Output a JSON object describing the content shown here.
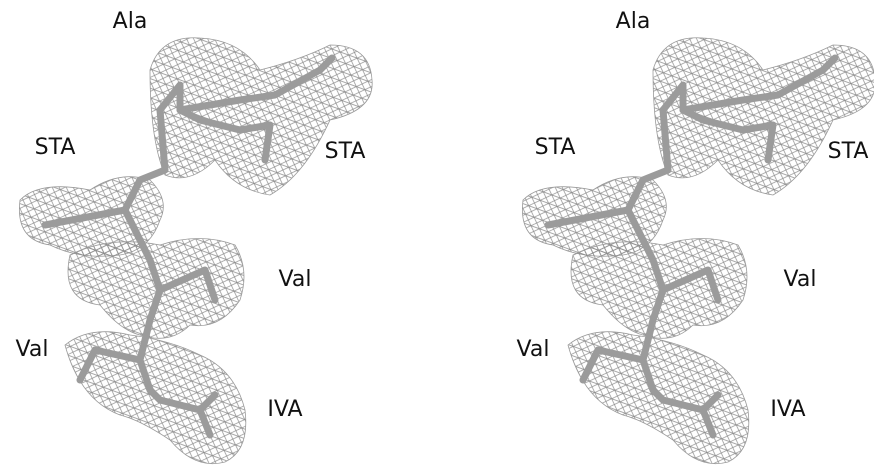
{
  "panels": [
    {
      "labels": [
        "Ala",
        "STA",
        "STA",
        "Val",
        "Val",
        "IVA"
      ]
    },
    {
      "labels": [
        "Ala",
        "STA",
        "STA",
        "Val",
        "Val",
        "IVA"
      ]
    }
  ]
}
